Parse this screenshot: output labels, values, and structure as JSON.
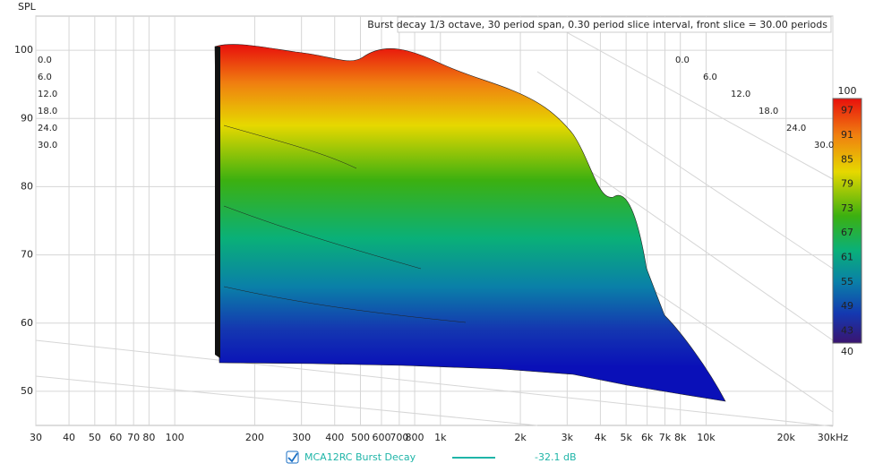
{
  "chart_data": {
    "type": "waterfall",
    "title": "Burst decay 1/3 octave, 30 period span, 0.30 period slice interval,  front slice = 30.00 periods",
    "y_label": "SPL",
    "ylim": [
      45,
      105
    ],
    "yticks": [
      50,
      60,
      70,
      80,
      90,
      100
    ],
    "xlim": [
      30,
      30000
    ],
    "log_x": true,
    "xticks": [
      30,
      40,
      50,
      60,
      70,
      80,
      100,
      200,
      300,
      400,
      500,
      600,
      700,
      800,
      {
        "value": 1000,
        "label": "1k"
      },
      {
        "value": 2000,
        "label": "2k"
      },
      {
        "value": 3000,
        "label": "3k"
      },
      {
        "value": 4000,
        "label": "4k"
      },
      {
        "value": 5000,
        "label": "5k"
      },
      {
        "value": 6000,
        "label": "6k"
      },
      {
        "value": 7000,
        "label": "7k"
      },
      {
        "value": 8000,
        "label": "8k"
      },
      {
        "value": 10000,
        "label": "10k"
      },
      {
        "value": 20000,
        "label": "20k"
      },
      {
        "value": 30000,
        "label": "30kHz"
      }
    ],
    "zticks": [
      {
        "value": 0,
        "label": "0.0"
      },
      {
        "value": 6,
        "label": "6.0"
      },
      {
        "value": 12,
        "label": "12.0"
      },
      {
        "value": 18,
        "label": "18.0"
      },
      {
        "value": 24,
        "label": "24.0"
      },
      {
        "value": 30,
        "label": "30.0"
      }
    ],
    "colorbar": {
      "min": 40,
      "max": 100,
      "ticks": [
        97,
        91,
        85,
        79,
        73,
        67,
        61,
        55,
        49,
        43
      ]
    },
    "legend": {
      "name": "MCA12RC Burst Decay",
      "color": "#1fb5a8",
      "level": "-32.1 dB"
    },
    "grid": true
  }
}
